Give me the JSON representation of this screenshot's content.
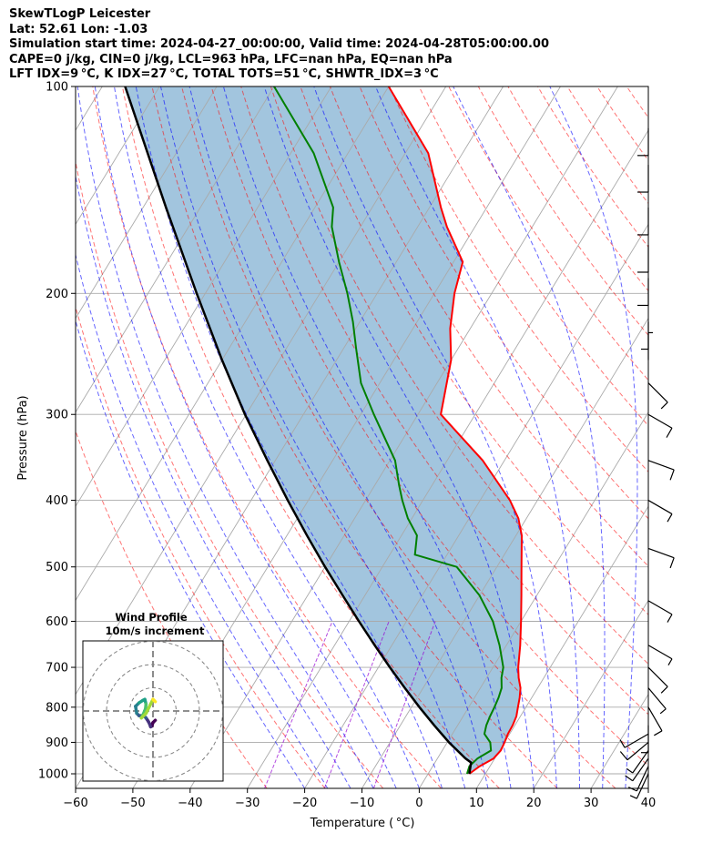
{
  "header": {
    "title": "SkewTLogP Leicester",
    "location": "Lat: 52.61   Lon: -1.03",
    "times": "Simulation start time: 2024-04-27_00:00:00, Valid time: 2024-04-28T05:00:00.00",
    "indices1": "CAPE=0 j/kg, CIN=0 j/kg, LCL=963 hPa, LFC=nan hPa, EQ=nan hPa",
    "indices2": "LFT IDX=9 °C, K IDX=27 °C, TOTAL TOTS=51 °C, SHWTR_IDX=3 °C"
  },
  "chart_data": {
    "type": "line",
    "subtype": "skew-t log-p",
    "xlabel": "Temperature ( °C)",
    "ylabel": "Pressure (hPa)",
    "xlim": [
      -60,
      40
    ],
    "ylim": [
      1050,
      100
    ],
    "y_scale": "log",
    "x_ticks": [
      "−60",
      "−50",
      "−40",
      "−30",
      "−20",
      "−10",
      "0",
      "10",
      "20",
      "30",
      "40"
    ],
    "y_ticks": [
      "1000",
      "900",
      "800",
      "700",
      "600",
      "500",
      "400",
      "300",
      "200",
      "100"
    ],
    "grid": true,
    "colors": {
      "temperature": "#ff0000",
      "dewpoint": "#008000",
      "parcel": "#000000",
      "cape_fill": "#a2c5de",
      "dry_adiabats": "#ff0000",
      "moist_adiabats": "#0000ff",
      "mixing_ratio": "#9400d3",
      "isotherms": "#aaaaaa"
    },
    "series": [
      {
        "key": "temperature",
        "pressure": [
          1000,
          975,
          950,
          925,
          900,
          875,
          850,
          825,
          800,
          775,
          750,
          725,
          700,
          650,
          600,
          550,
          500,
          450,
          425,
          400,
          350,
          300,
          250,
          225,
          200,
          180,
          160,
          150,
          125,
          100
        ],
        "values": [
          7.2,
          8.2,
          9.8,
          10.2,
          10.0,
          9.7,
          9.6,
          9.3,
          8.6,
          7.9,
          7.0,
          5.6,
          4.4,
          2.4,
          0.0,
          -2.7,
          -5.7,
          -9.0,
          -11.4,
          -14.8,
          -23.8,
          -36.0,
          -40.0,
          -43.5,
          -46.5,
          -48.4,
          -54.9,
          -58.0,
          -66.0,
          -80.0
        ]
      },
      {
        "key": "dewpoint",
        "pressure": [
          1000,
          975,
          950,
          925,
          900,
          875,
          850,
          825,
          800,
          775,
          750,
          725,
          700,
          650,
          600,
          550,
          500,
          480,
          450,
          425,
          400,
          380,
          350,
          300,
          270,
          240,
          220,
          200,
          180,
          160,
          150,
          125,
          100
        ],
        "values": [
          6.8,
          6.4,
          7.0,
          8.5,
          7.5,
          5.6,
          5.0,
          4.7,
          4.5,
          4.2,
          3.7,
          2.6,
          1.8,
          -1.2,
          -4.9,
          -10.0,
          -17.0,
          -25.6,
          -27.3,
          -30.7,
          -33.6,
          -35.8,
          -39.1,
          -47.7,
          -53.3,
          -57.9,
          -61.2,
          -65.2,
          -70.0,
          -75.0,
          -76.8,
          -86.0,
          -100.0
        ]
      },
      {
        "key": "parcel",
        "pressure": [
          1000,
          963,
          950,
          900,
          850,
          800,
          750,
          700,
          650,
          600,
          550,
          500,
          450,
          400,
          350,
          300,
          250,
          200,
          150,
          100
        ],
        "values": [
          7.2,
          6.3,
          4.9,
          0.3,
          -4.1,
          -8.6,
          -13.2,
          -18.0,
          -23.0,
          -28.3,
          -33.9,
          -40.0,
          -46.5,
          -53.6,
          -61.4,
          -70.2,
          -80.0,
          -91.5,
          -106.0,
          -126.0
        ]
      }
    ],
    "hodograph": {
      "title": "Wind Profile",
      "subtitle": "10m/s increment",
      "colormap": "viridis",
      "u": [
        1.0,
        0.0,
        -0.5,
        -1.0,
        -1.5,
        -2.0,
        -3.0,
        -4.0,
        -6.0,
        -7.0,
        -7.5,
        -6.0,
        -4.5,
        -3.5,
        -3.0,
        -3.2,
        -4.0,
        -5.0,
        -3.0,
        -1.0,
        0.0,
        0.5,
        1.0
      ],
      "v": [
        -4.0,
        -5.0,
        -6.5,
        -6.8,
        -5.5,
        -4.5,
        -3.0,
        -2.0,
        -2.0,
        -1.0,
        2.0,
        3.5,
        4.5,
        5.0,
        3.0,
        1.0,
        -1.0,
        -3.0,
        -1.0,
        3.0,
        5.0,
        4.5,
        4.0
      ]
    }
  }
}
